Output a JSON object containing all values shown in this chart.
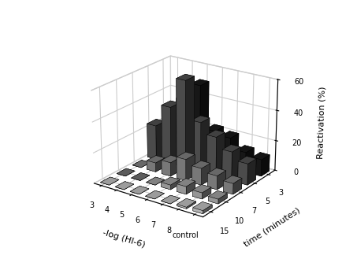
{
  "title": "",
  "xlabel": "-log (HI-6)",
  "ylabel": "Reactivation (%)",
  "zlabel": "time (minutes)",
  "x_labels": [
    "3",
    "4",
    "5",
    "6",
    "7",
    "8",
    "control"
  ],
  "time_labels": [
    "3",
    "5",
    "7",
    "10",
    "15"
  ],
  "ylim": [
    0,
    60
  ],
  "yticks": [
    0,
    20,
    40,
    60
  ],
  "values": {
    "comment": "rows=time(3,5,7,10,15 from back to front), cols=x(3,4,5,6,7,8,control)",
    "data": [
      [
        23,
        38,
        50,
        22,
        20,
        13,
        11
      ],
      [
        23,
        38,
        58,
        33,
        26,
        19,
        14
      ],
      [
        0,
        6,
        9,
        14,
        11,
        9,
        7
      ],
      [
        0,
        0,
        0,
        3,
        5,
        4,
        3
      ],
      [
        0,
        0,
        0,
        0,
        0,
        1,
        2
      ]
    ]
  },
  "bar_colors": [
    "#1a1a1a",
    "#555555",
    "#888888",
    "#aaaaaa",
    "#cccccc"
  ],
  "bar_width": 0.6,
  "bar_depth": 0.6,
  "elev": 22,
  "azim": -55,
  "background_color": "#ffffff"
}
